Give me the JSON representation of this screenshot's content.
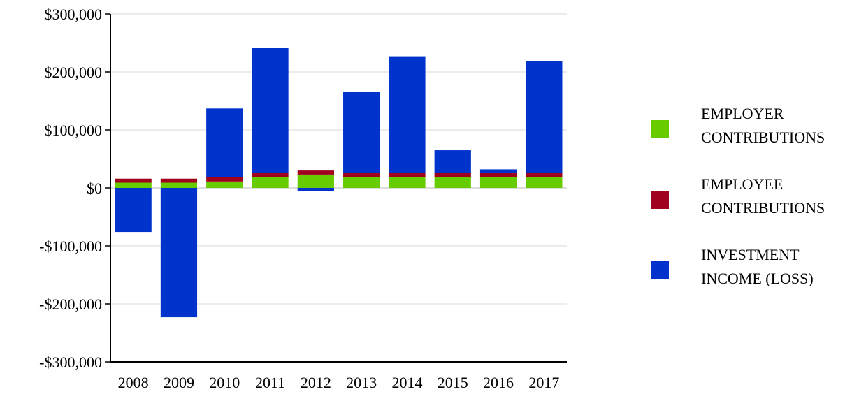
{
  "chart_data": {
    "type": "bar",
    "stacked": true,
    "categories": [
      "2008",
      "2009",
      "2010",
      "2011",
      "2012",
      "2013",
      "2014",
      "2015",
      "2016",
      "2017"
    ],
    "series": [
      {
        "name_lines": [
          "EMPLOYER",
          "CONTRIBUTIONS"
        ],
        "color": "#66cc00",
        "values": [
          9000,
          9000,
          11000,
          19000,
          23000,
          19000,
          19000,
          19000,
          19000,
          19000
        ]
      },
      {
        "name_lines": [
          "EMPLOYEE",
          "CONTRIBUTIONS"
        ],
        "color": "#a0001e",
        "values": [
          7000,
          7000,
          8000,
          7000,
          7000,
          7000,
          7000,
          7000,
          7000,
          7000
        ]
      },
      {
        "name_lines": [
          "INVESTMENT",
          "INCOME (LOSS)"
        ],
        "color": "#0033cc",
        "values": [
          -76000,
          -223000,
          118000,
          216000,
          -5000,
          140000,
          201000,
          39000,
          6000,
          193000
        ]
      }
    ],
    "yticks": [
      "$300,000",
      "$200,000",
      "$100,000",
      "$0",
      "-$100,000",
      "-$200,000",
      "-$300,000"
    ],
    "ylim": [
      -300000,
      300000
    ],
    "grid": true,
    "legend_position": "right"
  }
}
